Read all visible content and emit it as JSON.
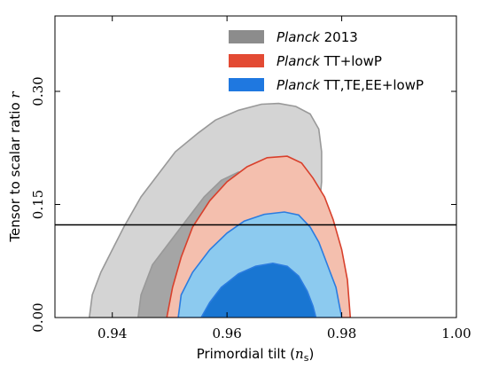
{
  "chart_data": {
    "type": "contour",
    "xlabel": "Primordial tilt (nₛ)",
    "ylabel": "Tensor to scalar ratio r",
    "xlim": [
      0.93,
      1.0
    ],
    "ylim": [
      0.0,
      0.4
    ],
    "xticks": [
      0.94,
      0.96,
      0.98,
      1.0
    ],
    "xtick_labels": [
      "0.94",
      "0.96",
      "0.98",
      "1.00"
    ],
    "yticks": [
      0.0,
      0.15,
      0.3
    ],
    "ytick_labels": [
      "0.00",
      "0.15",
      "0.30"
    ],
    "hline": {
      "y": 0.123
    },
    "legend_position": "top-right",
    "series": [
      {
        "name": "Planck 2013",
        "name_italic": "Planck",
        "name_rest": " 2013",
        "color": "#8c8c8c",
        "fill_outer": "#d4d4d4",
        "fill_inner": "#a5a5a5",
        "stroke": "#999999",
        "outer": [
          [
            0.936,
            0.0
          ],
          [
            0.9365,
            0.03
          ],
          [
            0.938,
            0.06
          ],
          [
            0.94,
            0.09
          ],
          [
            0.942,
            0.12
          ],
          [
            0.945,
            0.16
          ],
          [
            0.948,
            0.19
          ],
          [
            0.951,
            0.22
          ],
          [
            0.955,
            0.245
          ],
          [
            0.958,
            0.262
          ],
          [
            0.962,
            0.275
          ],
          [
            0.966,
            0.283
          ],
          [
            0.969,
            0.284
          ],
          [
            0.972,
            0.28
          ],
          [
            0.9745,
            0.27
          ],
          [
            0.976,
            0.25
          ],
          [
            0.9765,
            0.22
          ],
          [
            0.9765,
            0.18
          ],
          [
            0.976,
            0.14
          ],
          [
            0.976,
            0.1
          ],
          [
            0.976,
            0.06
          ],
          [
            0.9765,
            0.03
          ],
          [
            0.977,
            0.0
          ]
        ],
        "inner": [
          [
            0.9445,
            0.0
          ],
          [
            0.945,
            0.03
          ],
          [
            0.947,
            0.07
          ],
          [
            0.95,
            0.1
          ],
          [
            0.953,
            0.13
          ],
          [
            0.956,
            0.16
          ],
          [
            0.959,
            0.182
          ],
          [
            0.962,
            0.193
          ],
          [
            0.964,
            0.19
          ],
          [
            0.966,
            0.175
          ],
          [
            0.967,
            0.15
          ],
          [
            0.968,
            0.12
          ],
          [
            0.9685,
            0.09
          ],
          [
            0.969,
            0.06
          ],
          [
            0.969,
            0.03
          ],
          [
            0.9695,
            0.0
          ]
        ]
      },
      {
        "name": "Planck TT+lowP",
        "name_italic": "Planck",
        "name_rest": " TT+lowP",
        "color": "#e34a33",
        "fill_outer": "#f4bfae",
        "fill_inner": "#e9876d",
        "stroke": "#d8402c",
        "outer": [
          [
            0.9495,
            0.0
          ],
          [
            0.9505,
            0.04
          ],
          [
            0.952,
            0.08
          ],
          [
            0.954,
            0.12
          ],
          [
            0.957,
            0.155
          ],
          [
            0.96,
            0.18
          ],
          [
            0.9635,
            0.2
          ],
          [
            0.967,
            0.212
          ],
          [
            0.9705,
            0.214
          ],
          [
            0.973,
            0.205
          ],
          [
            0.975,
            0.185
          ],
          [
            0.977,
            0.16
          ],
          [
            0.9785,
            0.13
          ],
          [
            0.98,
            0.09
          ],
          [
            0.981,
            0.05
          ],
          [
            0.9815,
            0.0
          ]
        ],
        "inner": [
          [
            0.9545,
            0.0
          ],
          [
            0.9555,
            0.03
          ],
          [
            0.9575,
            0.06
          ],
          [
            0.96,
            0.085
          ],
          [
            0.963,
            0.102
          ],
          [
            0.966,
            0.108
          ],
          [
            0.9685,
            0.104
          ],
          [
            0.9705,
            0.09
          ],
          [
            0.972,
            0.07
          ],
          [
            0.9735,
            0.045
          ],
          [
            0.974,
            0.02
          ],
          [
            0.9745,
            0.0
          ]
        ]
      },
      {
        "name": "Planck TT,TE,EE+lowP",
        "name_italic": "Planck",
        "name_rest": " TT,TE,EE+lowP",
        "color": "#1f78e0",
        "fill_outer": "#8ccaef",
        "fill_inner": "#1976d2",
        "stroke": "#2b7ce0",
        "outer": [
          [
            0.9515,
            0.0
          ],
          [
            0.952,
            0.03
          ],
          [
            0.954,
            0.06
          ],
          [
            0.957,
            0.09
          ],
          [
            0.96,
            0.112
          ],
          [
            0.963,
            0.128
          ],
          [
            0.9665,
            0.137
          ],
          [
            0.97,
            0.14
          ],
          [
            0.9725,
            0.136
          ],
          [
            0.9745,
            0.12
          ],
          [
            0.976,
            0.1
          ],
          [
            0.977,
            0.08
          ],
          [
            0.978,
            0.06
          ],
          [
            0.979,
            0.04
          ],
          [
            0.9795,
            0.02
          ],
          [
            0.98,
            0.0
          ]
        ],
        "inner": [
          [
            0.9555,
            0.0
          ],
          [
            0.957,
            0.02
          ],
          [
            0.959,
            0.04
          ],
          [
            0.962,
            0.058
          ],
          [
            0.965,
            0.068
          ],
          [
            0.968,
            0.072
          ],
          [
            0.9705,
            0.068
          ],
          [
            0.9725,
            0.055
          ],
          [
            0.974,
            0.035
          ],
          [
            0.975,
            0.015
          ],
          [
            0.9755,
            0.0
          ]
        ]
      }
    ]
  }
}
